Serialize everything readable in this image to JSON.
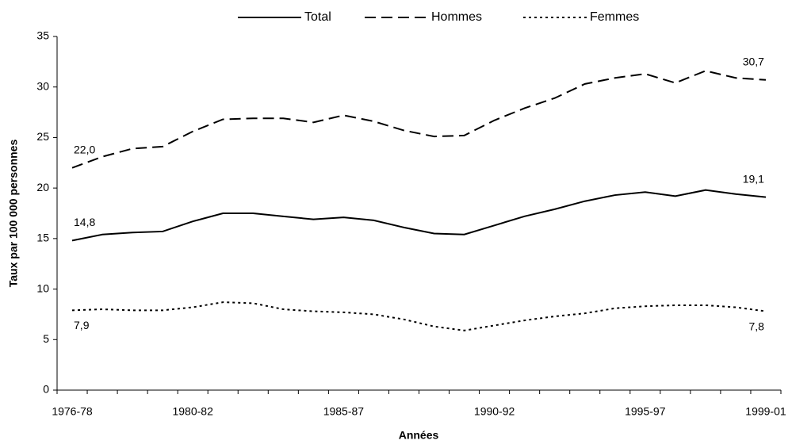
{
  "chart_data": {
    "type": "line",
    "x_label": "Années",
    "y_label": "Taux par 100 000 personnes",
    "categories": [
      "1976-78",
      null,
      null,
      null,
      "1980-82",
      null,
      null,
      null,
      null,
      "1985-87",
      null,
      null,
      null,
      null,
      "1990-92",
      null,
      null,
      null,
      null,
      "1995-97",
      null,
      null,
      null,
      "1999-01"
    ],
    "series": [
      {
        "name": "Total",
        "color": "#000000",
        "dash": "solid",
        "values": [
          14.8,
          15.4,
          15.6,
          15.7,
          16.7,
          17.5,
          17.5,
          17.2,
          16.9,
          17.1,
          16.8,
          16.1,
          15.5,
          15.4,
          16.3,
          17.2,
          17.9,
          18.7,
          19.3,
          19.6,
          19.2,
          19.8,
          19.4,
          19.1
        ],
        "value_labels": [
          "14,8",
          null,
          null,
          null,
          null,
          null,
          null,
          null,
          null,
          null,
          null,
          null,
          null,
          null,
          null,
          null,
          null,
          null,
          null,
          null,
          null,
          null,
          null,
          "19,1"
        ]
      },
      {
        "name": "Hommes",
        "color": "#000000",
        "dash": "dashed",
        "values": [
          22.0,
          23.1,
          23.9,
          24.1,
          25.6,
          26.8,
          26.9,
          26.9,
          26.5,
          27.2,
          26.6,
          25.7,
          25.1,
          25.2,
          26.7,
          27.9,
          28.9,
          30.3,
          30.9,
          31.3,
          30.4,
          31.6,
          30.9,
          30.7
        ],
        "value_labels": [
          "22,0",
          null,
          null,
          null,
          null,
          null,
          null,
          null,
          null,
          null,
          null,
          null,
          null,
          null,
          null,
          null,
          null,
          null,
          null,
          null,
          null,
          null,
          null,
          "30,7"
        ]
      },
      {
        "name": "Femmes",
        "color": "#000000",
        "dash": "dotted",
        "values": [
          7.9,
          8.0,
          7.9,
          7.9,
          8.2,
          8.7,
          8.6,
          8.0,
          7.8,
          7.7,
          7.5,
          7.0,
          6.3,
          5.9,
          6.4,
          6.9,
          7.3,
          7.6,
          8.1,
          8.3,
          8.4,
          8.4,
          8.2,
          7.8
        ],
        "value_labels": [
          "7,9",
          null,
          null,
          null,
          null,
          null,
          null,
          null,
          null,
          null,
          null,
          null,
          null,
          null,
          null,
          null,
          null,
          null,
          null,
          null,
          null,
          null,
          null,
          "7,8"
        ]
      }
    ],
    "ylim": [
      0,
      35
    ],
    "yticks": [
      0,
      5,
      10,
      15,
      20,
      25,
      30,
      35
    ],
    "grid": false,
    "legend": "top"
  }
}
